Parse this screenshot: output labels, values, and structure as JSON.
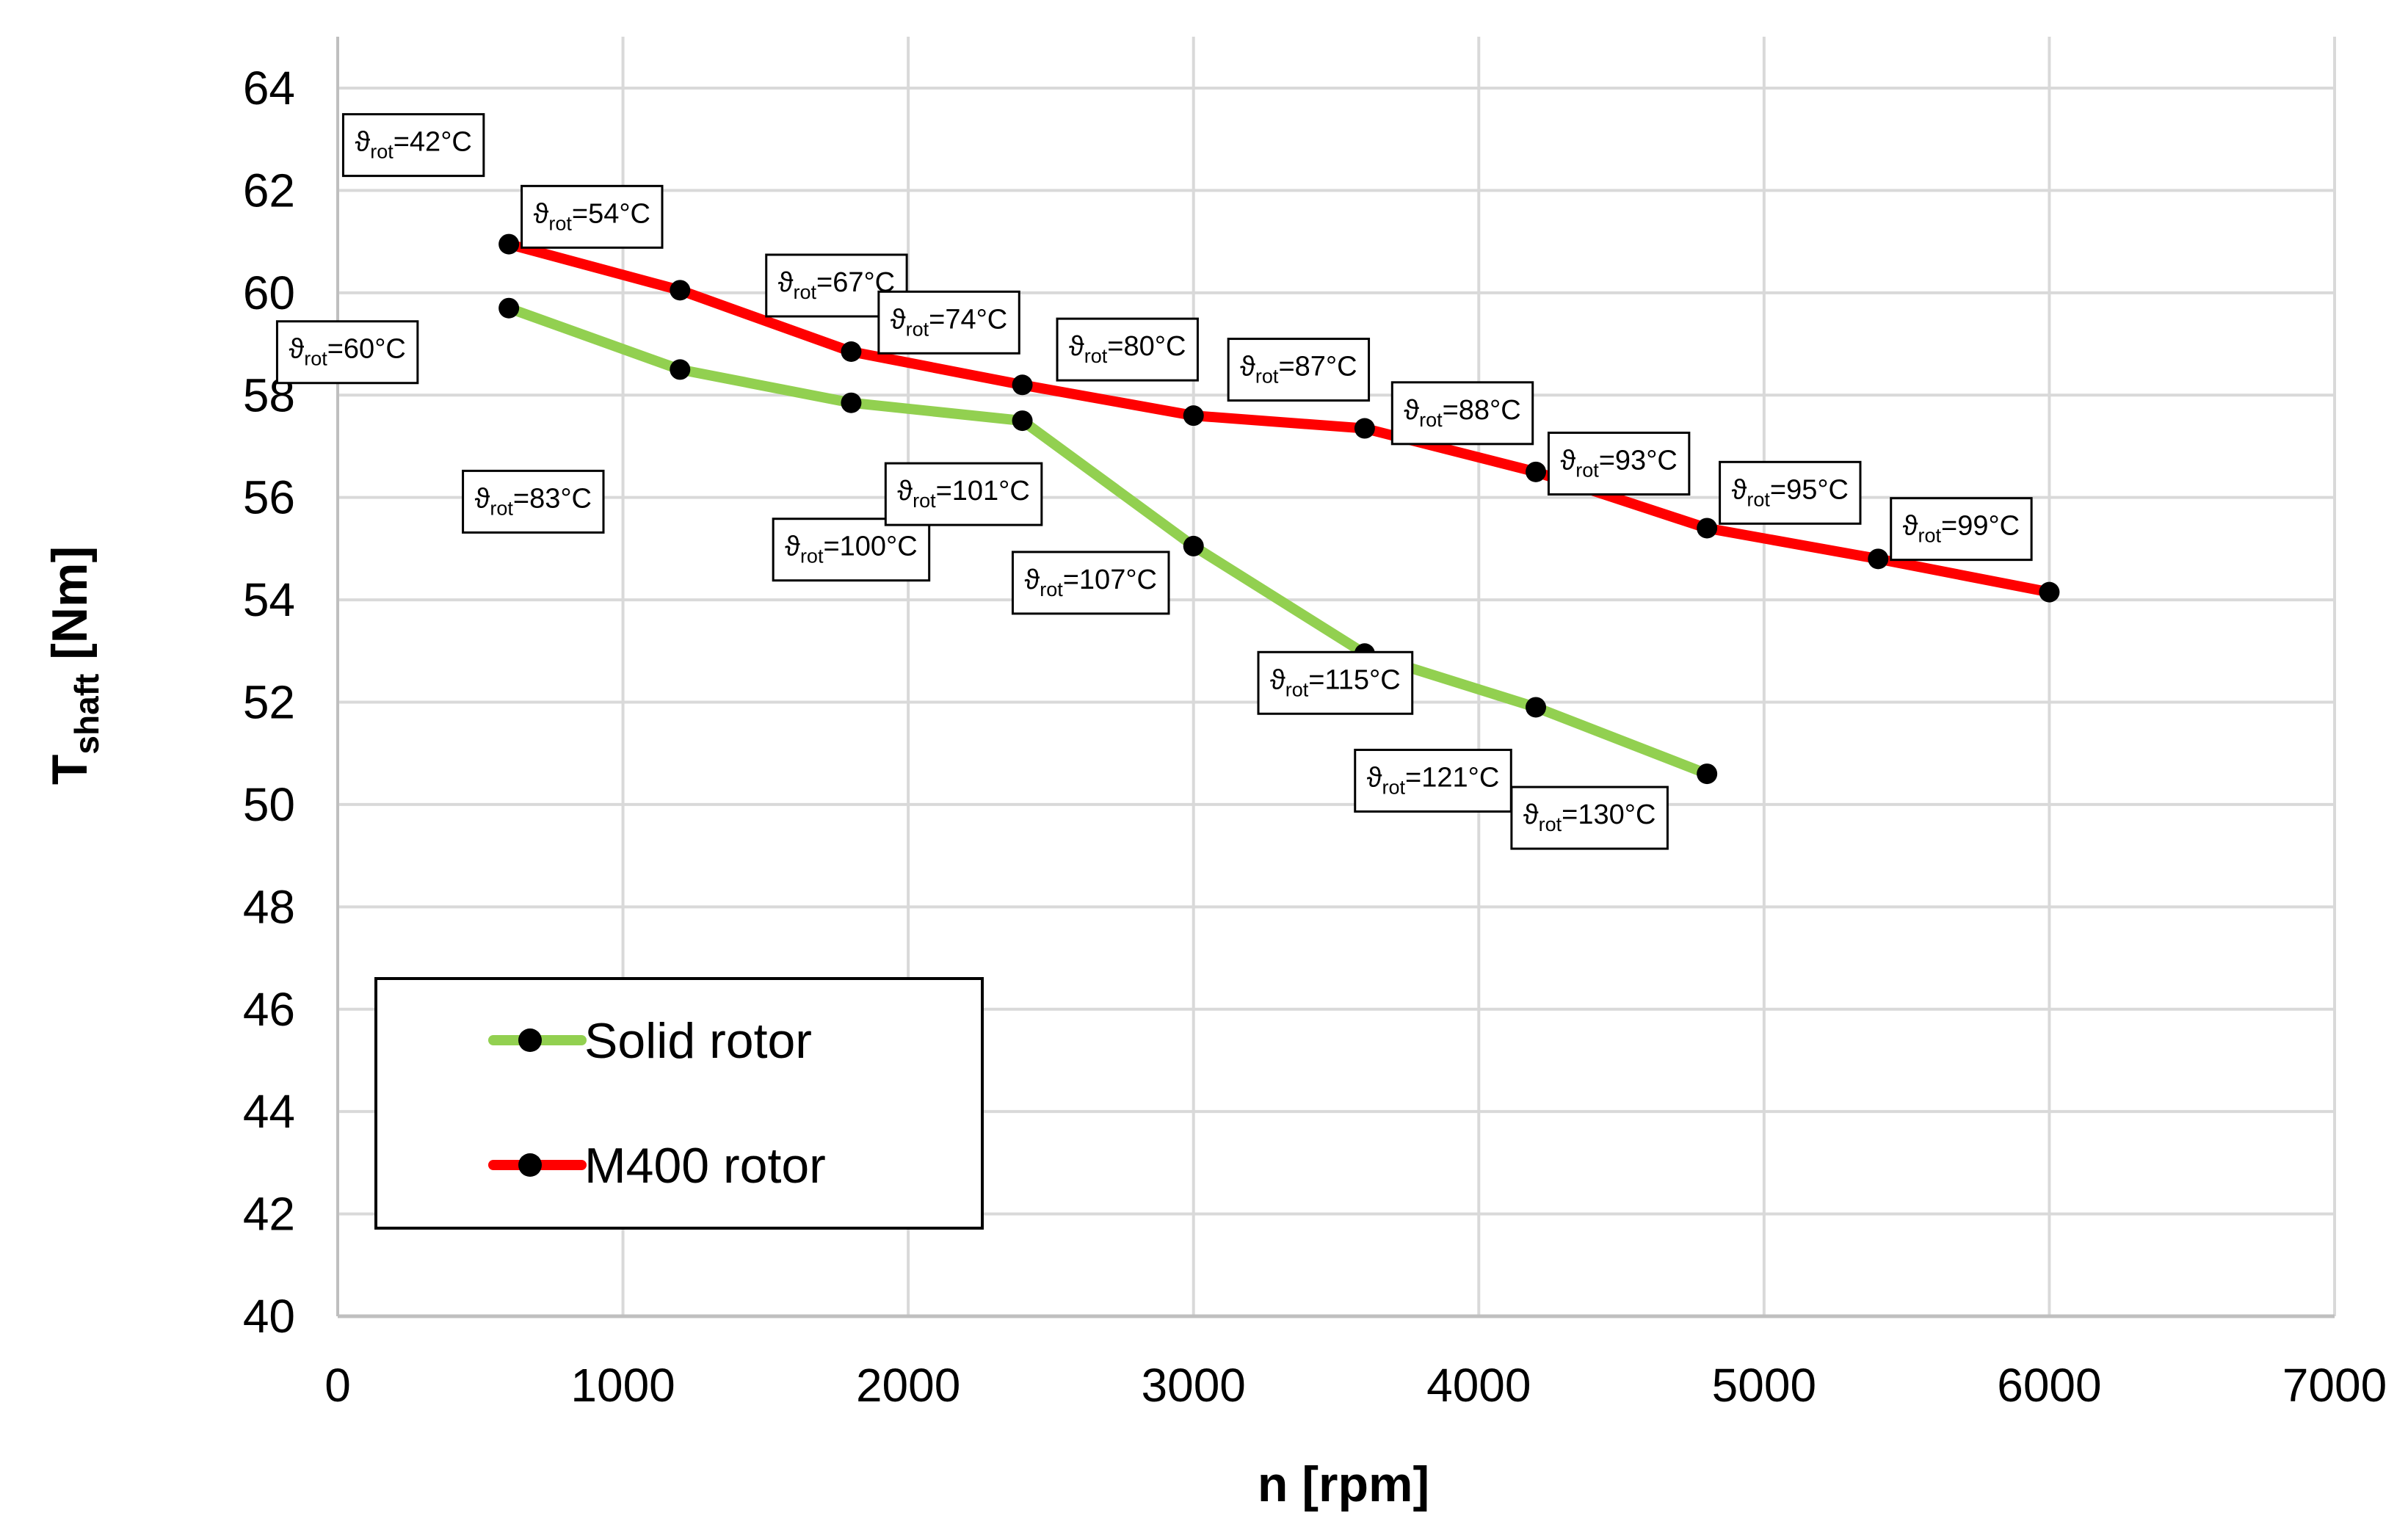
{
  "chart_data": {
    "type": "line",
    "title": "",
    "xlabel": "n [rpm]",
    "ylabel": {
      "main": "T",
      "sub": "shaft",
      "unit": " [Nm]"
    },
    "xlim": [
      0,
      7000
    ],
    "ylim": [
      40,
      64
    ],
    "xticks": [
      0,
      1000,
      2000,
      3000,
      4000,
      5000,
      6000,
      7000
    ],
    "yticks": [
      40,
      42,
      44,
      46,
      48,
      50,
      52,
      54,
      56,
      58,
      60,
      62,
      64
    ],
    "grid": true,
    "legend_position": "bottom-left",
    "series": [
      {
        "name": "Solid rotor",
        "color": "#92d050",
        "points": [
          {
            "x": 600,
            "y": 59.7,
            "label": "60°C"
          },
          {
            "x": 1200,
            "y": 58.5,
            "label": "83°C"
          },
          {
            "x": 1800,
            "y": 57.85,
            "label": "100°C"
          },
          {
            "x": 2400,
            "y": 57.5,
            "label": "101°C"
          },
          {
            "x": 3000,
            "y": 55.05,
            "label": "107°C"
          },
          {
            "x": 3600,
            "y": 52.95,
            "label": "115°C"
          },
          {
            "x": 4200,
            "y": 51.9,
            "label": "121°C"
          },
          {
            "x": 4800,
            "y": 50.6,
            "label": "130°C"
          }
        ]
      },
      {
        "name": "M400 rotor",
        "color": "#ff0000",
        "points": [
          {
            "x": 600,
            "y": 60.95,
            "label": "42°C"
          },
          {
            "x": 1200,
            "y": 60.05,
            "label": "54°C"
          },
          {
            "x": 1800,
            "y": 58.85,
            "label": "67°C"
          },
          {
            "x": 2400,
            "y": 58.2,
            "label": "74°C"
          },
          {
            "x": 3000,
            "y": 57.6,
            "label": "80°C"
          },
          {
            "x": 3600,
            "y": 57.35,
            "label": "87°C"
          },
          {
            "x": 4200,
            "y": 56.5,
            "label": "88°C"
          },
          {
            "x": 4800,
            "y": 55.4,
            "label": "93°C"
          },
          {
            "x": 5400,
            "y": 54.8,
            "label": "95°C"
          },
          {
            "x": 6000,
            "y": 54.15,
            "label": "99°C"
          }
        ]
      }
    ],
    "label_prefix": "ϑ",
    "label_prefix_sub": "rot",
    "label_prefix_eq": "="
  }
}
